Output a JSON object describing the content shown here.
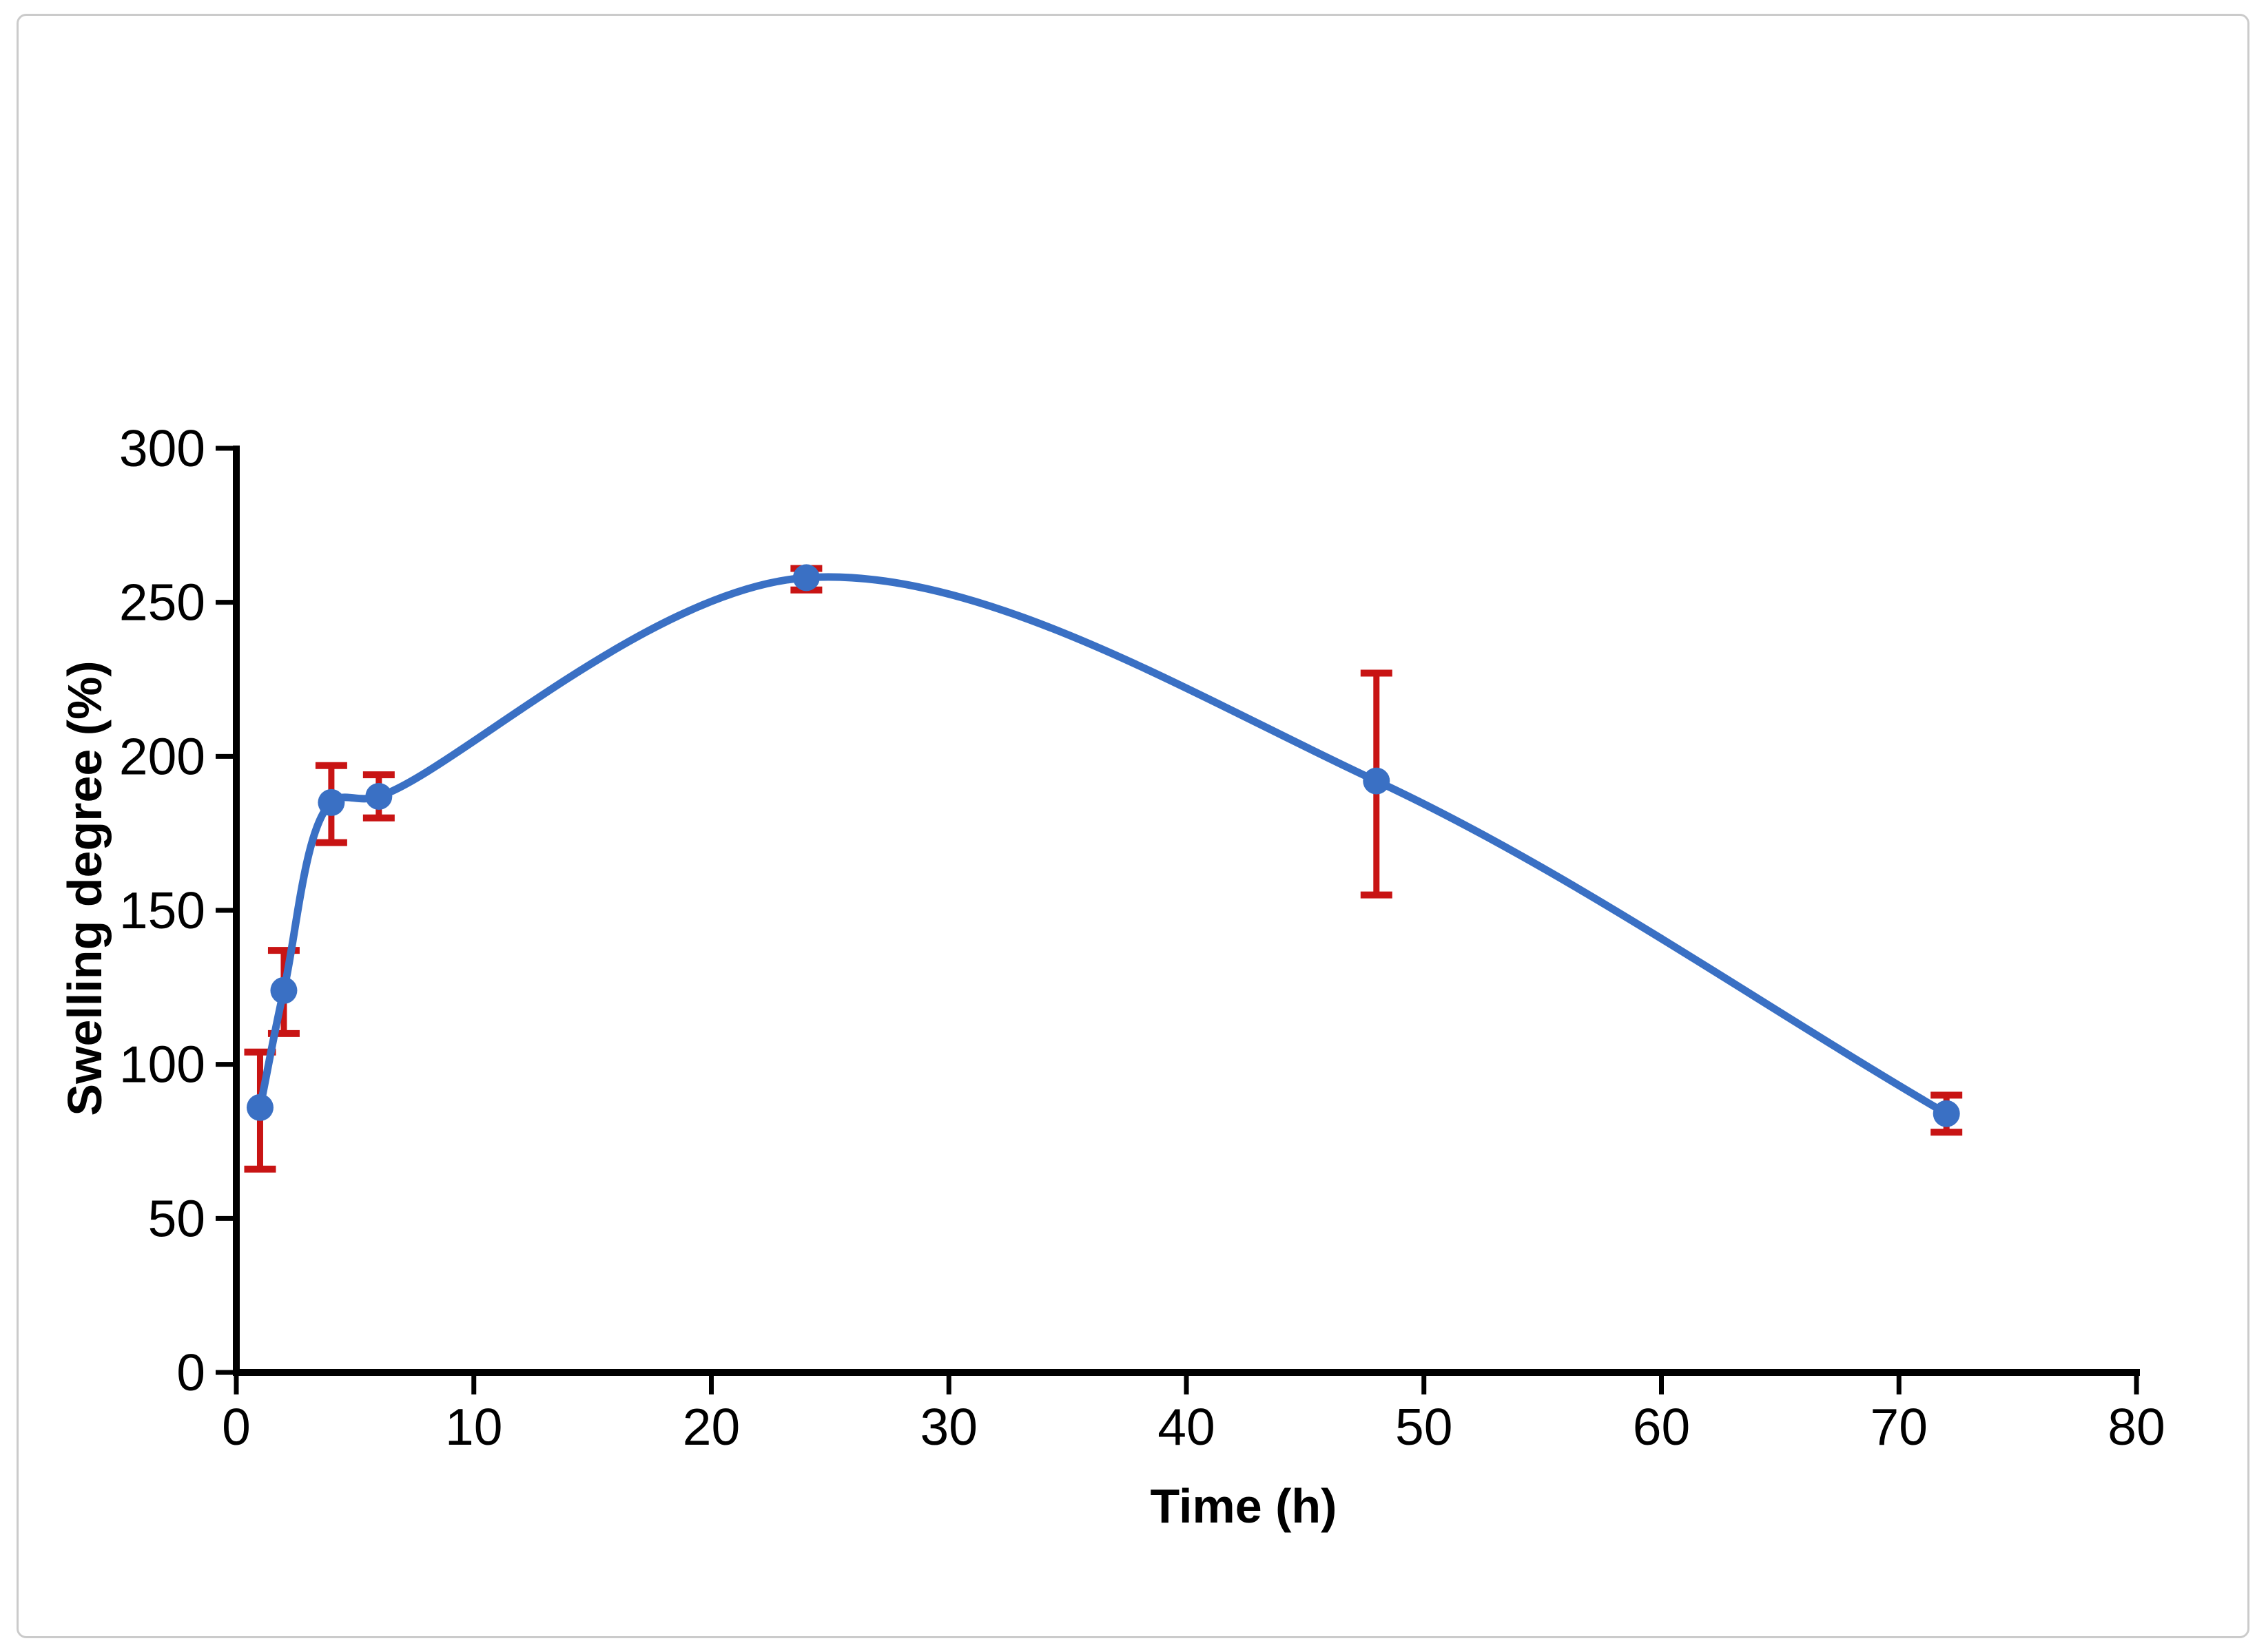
{
  "figure": {
    "background_color": "#ffffff",
    "border_color": "#cbcbcb"
  },
  "chart_data": {
    "type": "line",
    "title": "",
    "xlabel": "Time (h)",
    "ylabel": "Swelling degree (%)",
    "x": [
      1,
      2,
      4,
      6,
      24,
      48,
      72
    ],
    "series": [
      {
        "name": "Swelling degree",
        "values": [
          86,
          124,
          185,
          187,
          258,
          192,
          84
        ],
        "error_plus": [
          18,
          13,
          12,
          7,
          3,
          35,
          6
        ],
        "error_minus": [
          20,
          14,
          13,
          7,
          4,
          37,
          6
        ]
      }
    ],
    "xlim": [
      0,
      80
    ],
    "ylim": [
      0,
      300
    ],
    "x_ticks": [
      0,
      10,
      20,
      30,
      40,
      50,
      60,
      70,
      80
    ],
    "y_ticks": [
      0,
      50,
      100,
      150,
      200,
      250,
      300
    ],
    "grid": false,
    "legend": false,
    "line_color": "#3a70c4",
    "marker_color": "#3a70c4",
    "error_bar_color": "#c81414",
    "axis_color": "#000000",
    "smooth": true,
    "marker_shape": "circle"
  }
}
